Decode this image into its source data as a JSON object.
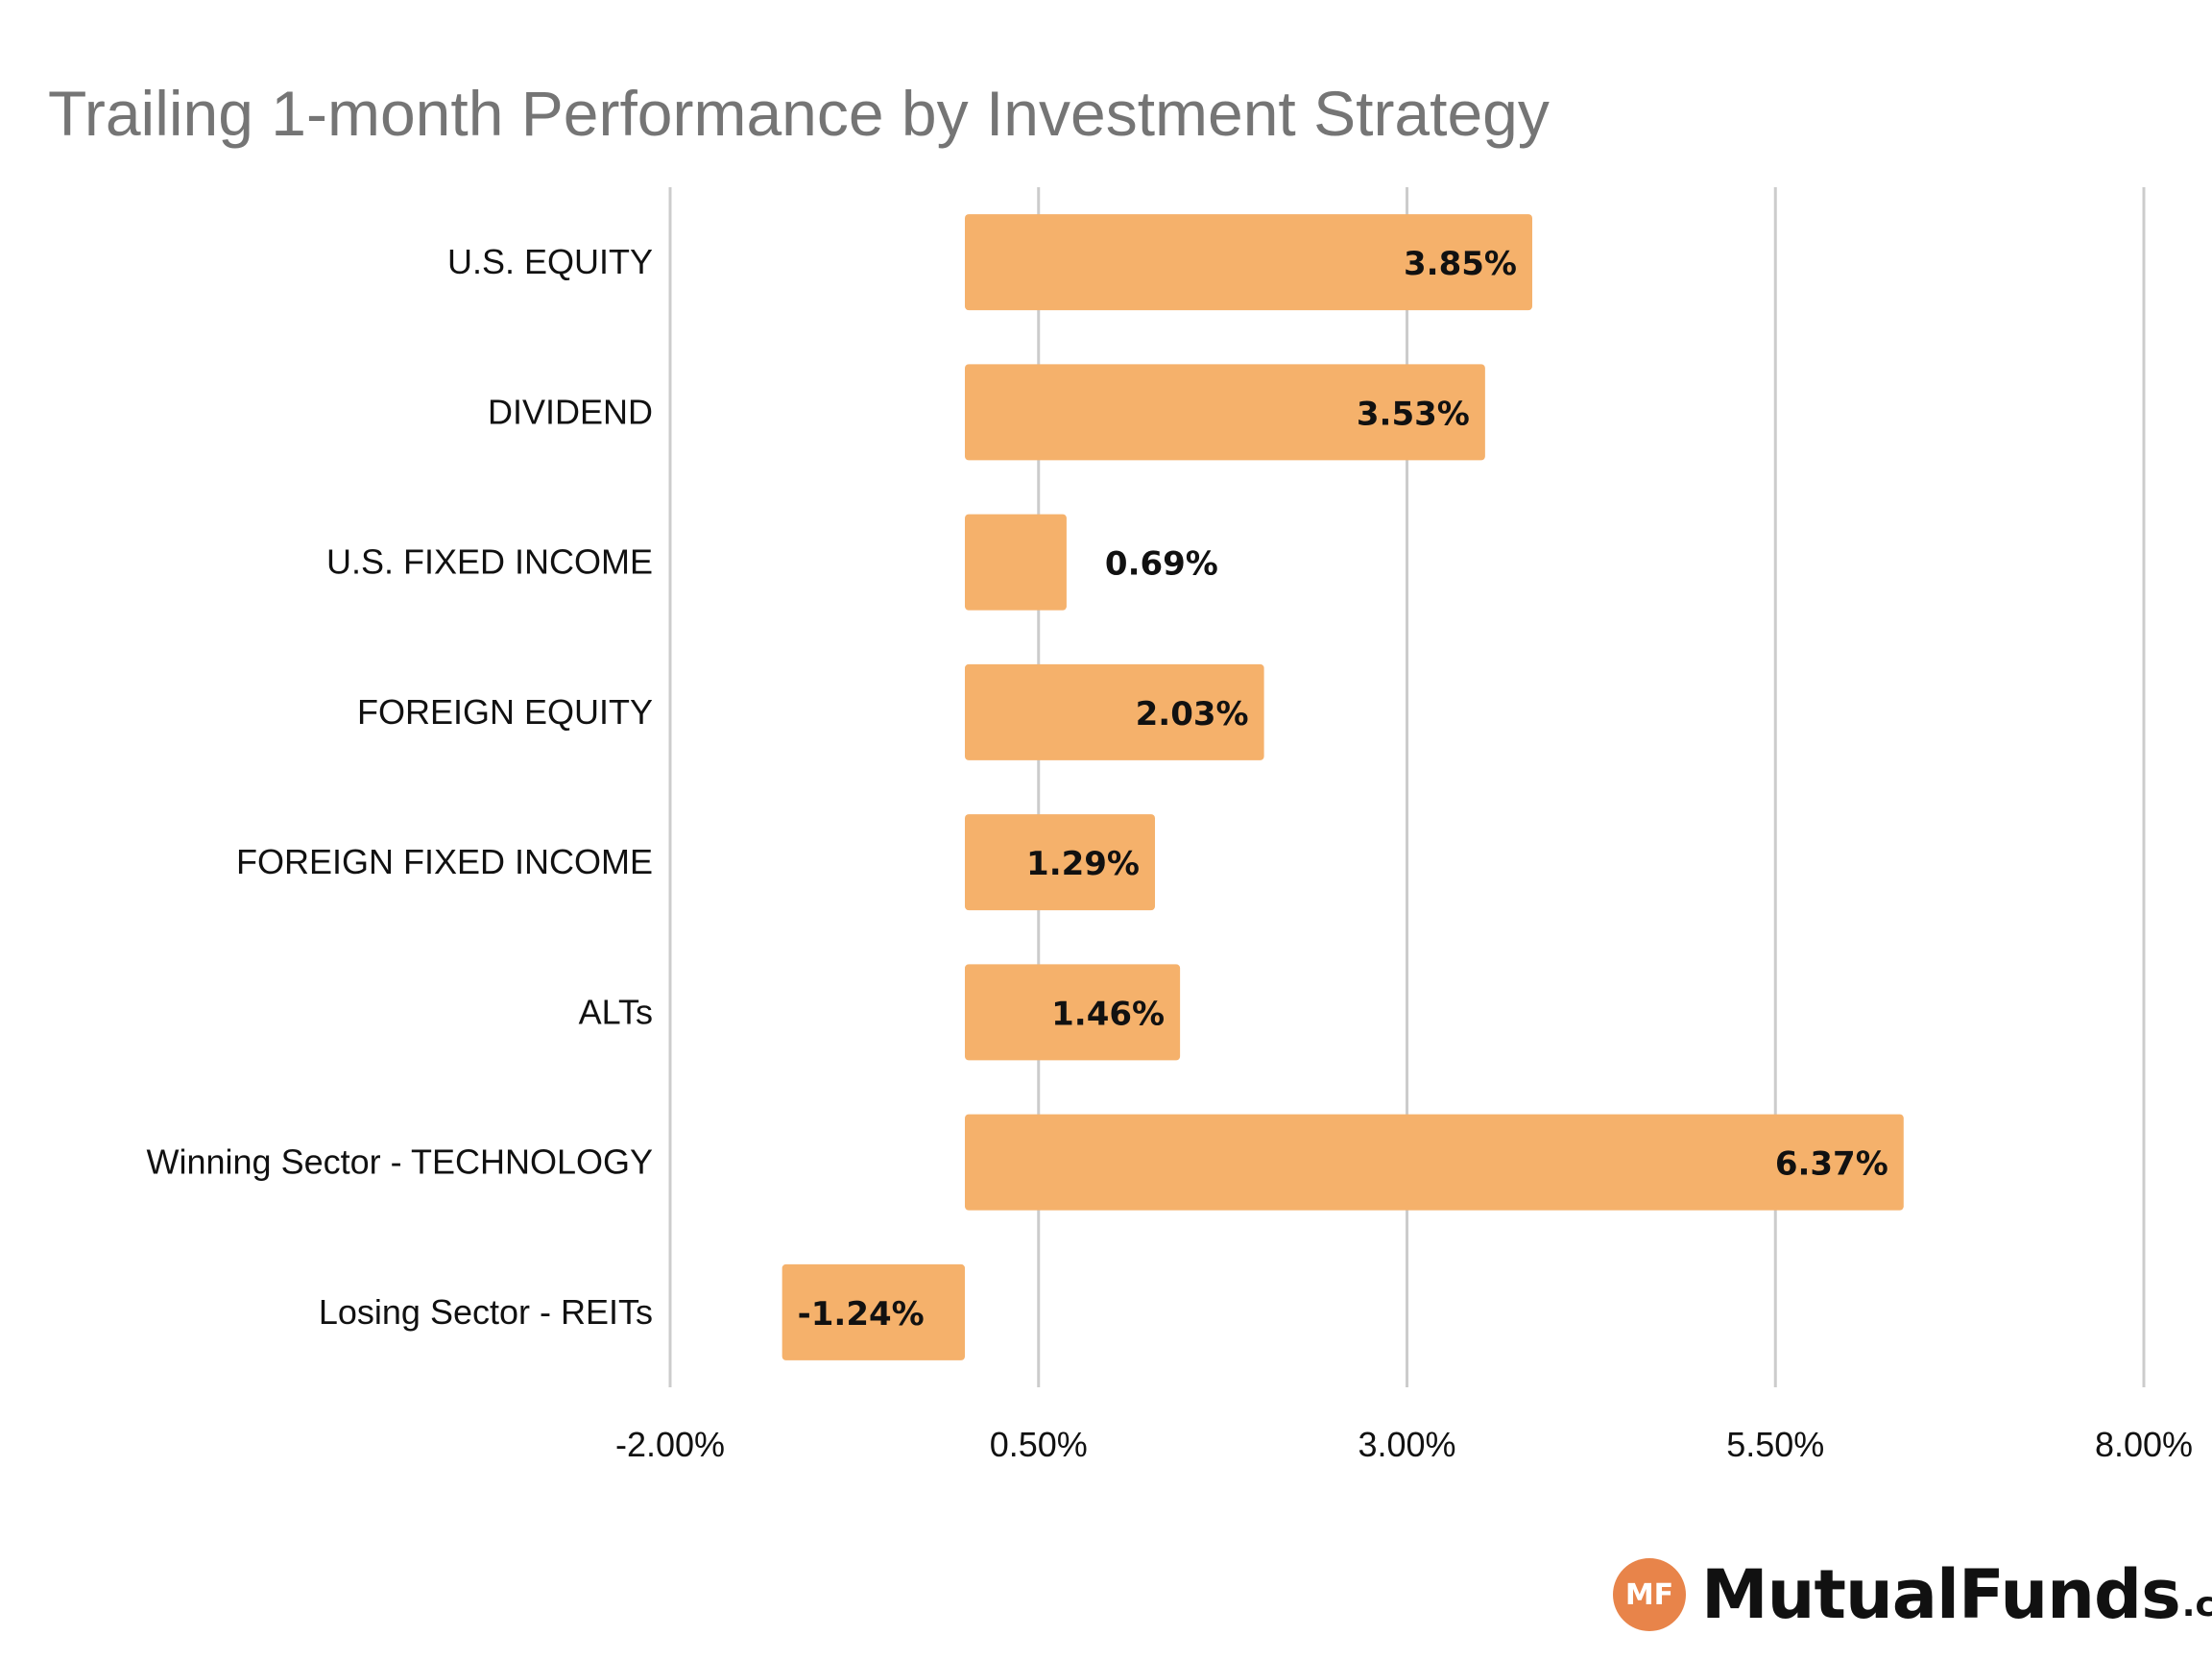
{
  "chart_data": {
    "type": "bar",
    "orientation": "horizontal",
    "title": "Trailing 1-month Performance by Investment Strategy",
    "categories": [
      "U.S. EQUITY",
      "DIVIDEND",
      "U.S. FIXED INCOME",
      "FOREIGN EQUITY",
      "FOREIGN FIXED INCOME",
      "ALTs",
      "Winning Sector - TECHNOLOGY",
      "Losing Sector - REITs"
    ],
    "values": [
      3.85,
      3.53,
      0.69,
      2.03,
      1.29,
      1.46,
      6.37,
      -1.24
    ],
    "data_labels": [
      "3.85%",
      "3.53%",
      "0.69%",
      "2.03%",
      "1.29%",
      "1.46%",
      "6.37%",
      "-1.24%"
    ],
    "x_ticks": [
      -2.0,
      0.5,
      3.0,
      5.5,
      8.0
    ],
    "x_tick_labels": [
      "-2.00%",
      "0.50%",
      "3.00%",
      "5.50%",
      "8.00%"
    ],
    "xlim": [
      -2.0,
      8.0
    ],
    "xlabel": "",
    "ylabel": "",
    "grid": true,
    "legend": "none",
    "bar_color": "#f5b16b",
    "gridline_color": "#cccccc"
  },
  "logo": {
    "badge": "MF",
    "word": "MutualFunds",
    "suffix": ".com",
    "badge_color": "#e8844a"
  }
}
